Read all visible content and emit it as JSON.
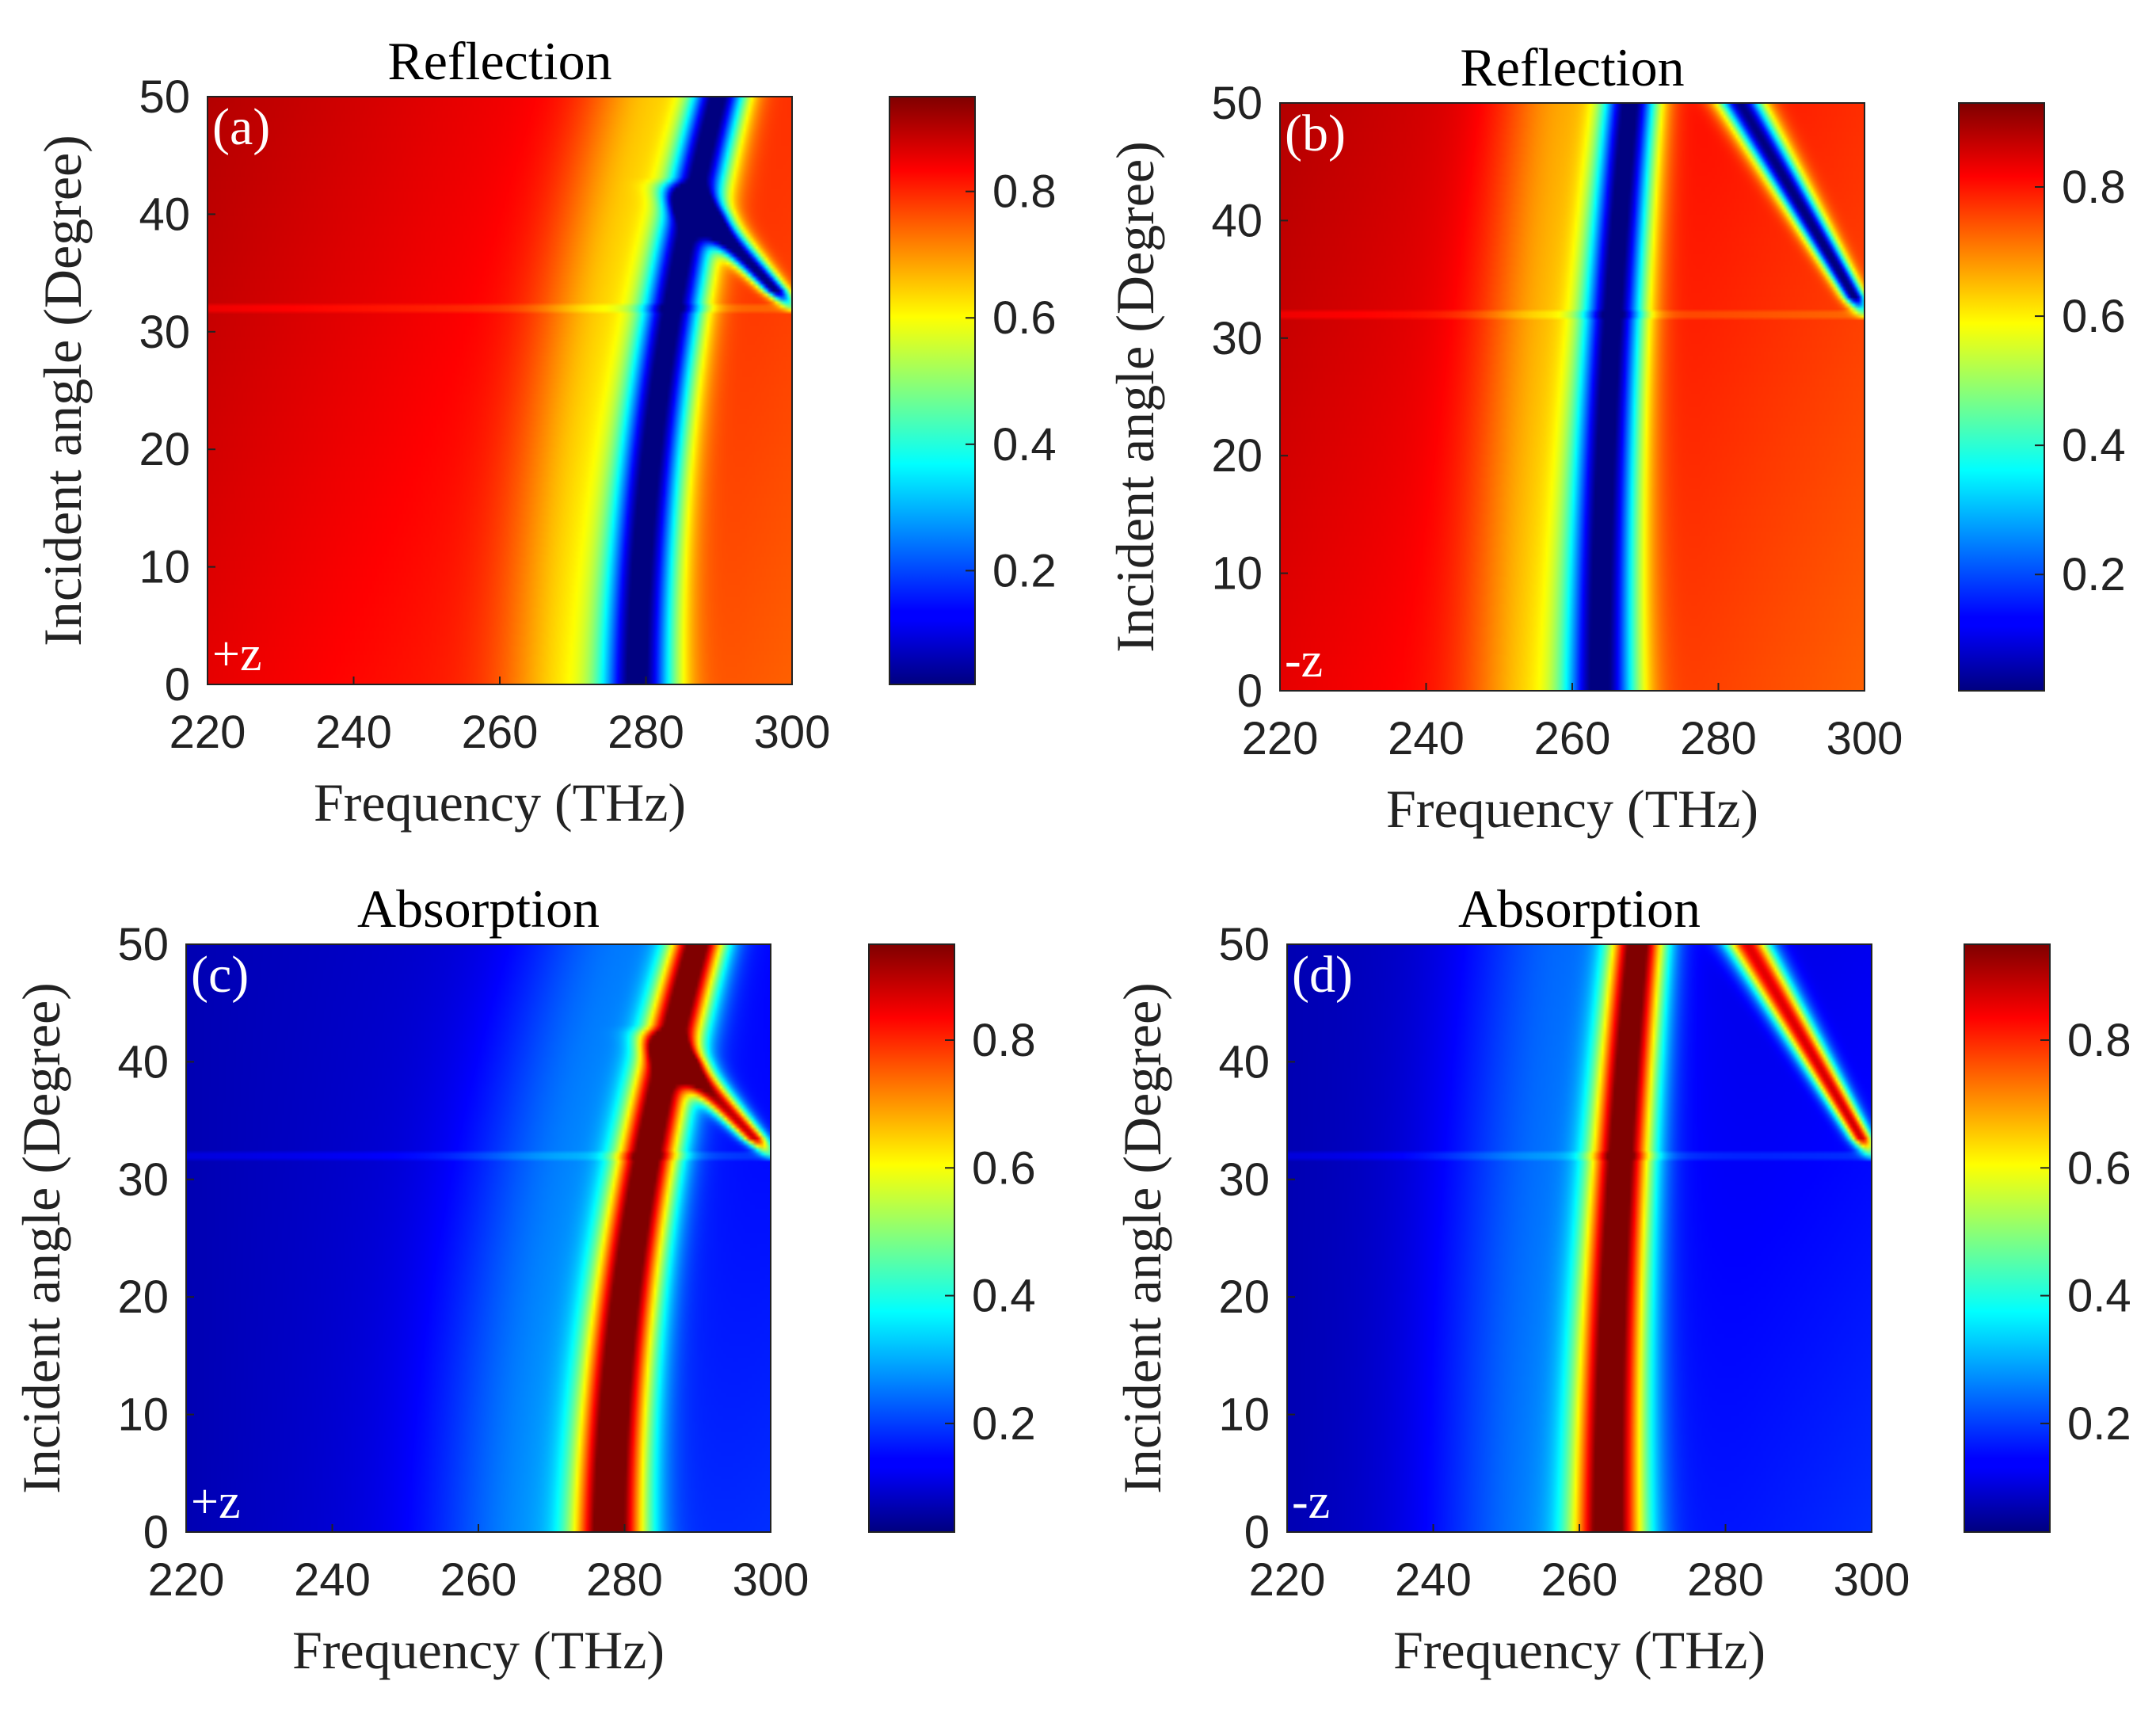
{
  "chart_data": [
    {
      "panel": "(a)",
      "type": "heatmap",
      "title": "Reflection",
      "direction": "+z",
      "xlabel": "Frequency (THz)",
      "ylabel": "Incident angle (Degree)",
      "xlim": [
        220,
        300
      ],
      "ylim": [
        0,
        50
      ],
      "xticks": [
        "220",
        "240",
        "260",
        "280",
        "300"
      ],
      "yticks": [
        "0",
        "10",
        "20",
        "30",
        "40",
        "50"
      ],
      "colorbar": {
        "range": [
          0.02,
          0.95
        ],
        "ticks": [
          "0.2",
          "0.4",
          "0.6",
          "0.8"
        ]
      },
      "colormap": "jet",
      "features": {
        "background_level": 0.85,
        "main_band": {
          "center_at_0deg": 279,
          "center_at_50deg": 290,
          "min_value": 0.02
        },
        "secondary_band": {
          "from": [
            288,
            40
          ],
          "to": [
            300,
            32
          ],
          "min_value": 0.1
        },
        "horizontal_artifact_angle": 32
      }
    },
    {
      "panel": "(b)",
      "type": "heatmap",
      "title": "Reflection",
      "direction": "-z",
      "xlabel": "Frequency (THz)",
      "ylabel": "Incident angle (Degree)",
      "xlim": [
        220,
        300
      ],
      "ylim": [
        0,
        50
      ],
      "xticks": [
        "220",
        "240",
        "260",
        "280",
        "300"
      ],
      "yticks": [
        "0",
        "10",
        "20",
        "30",
        "40",
        "50"
      ],
      "colorbar": {
        "range": [
          0.02,
          0.93
        ],
        "ticks": [
          "0.2",
          "0.4",
          "0.6",
          "0.8"
        ]
      },
      "colormap": "jet",
      "features": {
        "background_level": 0.85,
        "main_band": {
          "center_at_0deg": 264,
          "center_at_50deg": 268,
          "min_value": 0.02
        },
        "secondary_band": {
          "from": [
            283,
            50
          ],
          "to": [
            300,
            32
          ],
          "min_value": 0.05
        },
        "horizontal_artifact_angle": 32
      }
    },
    {
      "panel": "(c)",
      "type": "heatmap",
      "title": "Absorption",
      "direction": "+z",
      "xlabel": "Frequency (THz)",
      "ylabel": "Incident angle (Degree)",
      "xlim": [
        220,
        300
      ],
      "ylim": [
        0,
        50
      ],
      "xticks": [
        "220",
        "240",
        "260",
        "280",
        "300"
      ],
      "yticks": [
        "0",
        "10",
        "20",
        "30",
        "40",
        "50"
      ],
      "colorbar": {
        "range": [
          0.03,
          0.95
        ],
        "ticks": [
          "0.2",
          "0.4",
          "0.6",
          "0.8"
        ]
      },
      "colormap": "jet",
      "features": {
        "background_level": 0.1,
        "main_band": {
          "center_at_0deg": 278,
          "center_at_50deg": 290,
          "max_value": 0.95
        },
        "secondary_band": {
          "from": [
            288,
            40
          ],
          "to": [
            300,
            32
          ],
          "max_value": 0.85
        },
        "horizontal_artifact_angle": 32
      }
    },
    {
      "panel": "(d)",
      "type": "heatmap",
      "title": "Absorption",
      "direction": "-z",
      "xlabel": "Frequency (THz)",
      "ylabel": "Incident angle (Degree)",
      "xlim": [
        220,
        300
      ],
      "ylim": [
        0,
        50
      ],
      "xticks": [
        "220",
        "240",
        "260",
        "280",
        "300"
      ],
      "yticks": [
        "0",
        "10",
        "20",
        "30",
        "40",
        "50"
      ],
      "colorbar": {
        "range": [
          0.03,
          0.95
        ],
        "ticks": [
          "0.2",
          "0.4",
          "0.6",
          "0.8"
        ]
      },
      "colormap": "jet",
      "features": {
        "background_level": 0.1,
        "main_band": {
          "center_at_0deg": 264,
          "center_at_50deg": 268,
          "max_value": 0.95
        },
        "secondary_band": {
          "from": [
            283,
            50
          ],
          "to": [
            300,
            32
          ],
          "max_value": 0.9
        },
        "horizontal_artifact_angle": 32
      }
    }
  ]
}
